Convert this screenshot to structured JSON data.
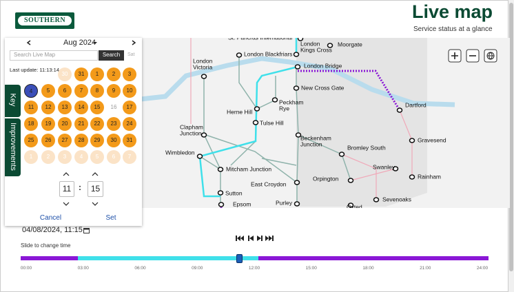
{
  "header": {
    "logo": "SOUTHERN",
    "title": "Live map",
    "subtitle": "Service status at a glance"
  },
  "calendar": {
    "month": "Aug 2024",
    "search_placeholder": "Search Live Map",
    "search_button": "Search",
    "day_header": "Sat",
    "last_update": "Last update: 11:13:14",
    "weeks": [
      [
        null,
        null,
        30,
        31,
        1,
        2,
        3
      ],
      [
        4,
        5,
        6,
        7,
        8,
        9,
        10
      ],
      [
        11,
        12,
        13,
        14,
        15,
        16,
        17
      ],
      [
        18,
        19,
        20,
        21,
        22,
        23,
        24
      ],
      [
        25,
        26,
        27,
        28,
        29,
        30,
        31
      ],
      [
        1,
        2,
        3,
        4,
        5,
        6,
        7
      ]
    ],
    "hour": "11",
    "separator": ":",
    "minute": "15",
    "cancel": "Cancel",
    "set": "Set"
  },
  "side_tabs": [
    "Key",
    "Improvements"
  ],
  "map": {
    "stations": [
      {
        "name": [
          "St. Pancras International"
        ]
      },
      {
        "name": [
          "London",
          "Kings Cross"
        ]
      },
      {
        "name": [
          "Moorgate"
        ]
      },
      {
        "name": [
          "London Blackfriars"
        ]
      },
      {
        "name": [
          "London",
          "Victoria"
        ]
      },
      {
        "name": [
          "London Bridge"
        ]
      },
      {
        "name": [
          "New Cross Gate"
        ]
      },
      {
        "name": [
          "Dartford"
        ]
      },
      {
        "name": [
          "Peckham",
          "Rye"
        ]
      },
      {
        "name": [
          "Herne Hill"
        ]
      },
      {
        "name": [
          "Tulse Hill"
        ]
      },
      {
        "name": [
          "Clapham",
          "Junction"
        ]
      },
      {
        "name": [
          "Gravesend"
        ]
      },
      {
        "name": [
          "Beckenham",
          "Junction"
        ]
      },
      {
        "name": [
          "Bromley South"
        ]
      },
      {
        "name": [
          "Wimbledon"
        ]
      },
      {
        "name": [
          "Swanley"
        ]
      },
      {
        "name": [
          "Rainham"
        ]
      },
      {
        "name": [
          "Mitcham Junction"
        ]
      },
      {
        "name": [
          "Orpington"
        ]
      },
      {
        "name": [
          "East Croydon"
        ]
      },
      {
        "name": [
          "Sevenoaks"
        ]
      },
      {
        "name": [
          "Sutton"
        ]
      },
      {
        "name": [
          "Purley"
        ]
      },
      {
        "name": [
          "Epsom"
        ]
      },
      {
        "name": [
          "Oxted"
        ]
      }
    ]
  },
  "timeline": {
    "datetime": "04/08/2024, 11:15",
    "hint": "Slide to change time",
    "labels": [
      "00:00",
      "03:00",
      "06:00",
      "09:00",
      "12:00",
      "15:00",
      "18:00",
      "21:00",
      "24:00"
    ]
  }
}
